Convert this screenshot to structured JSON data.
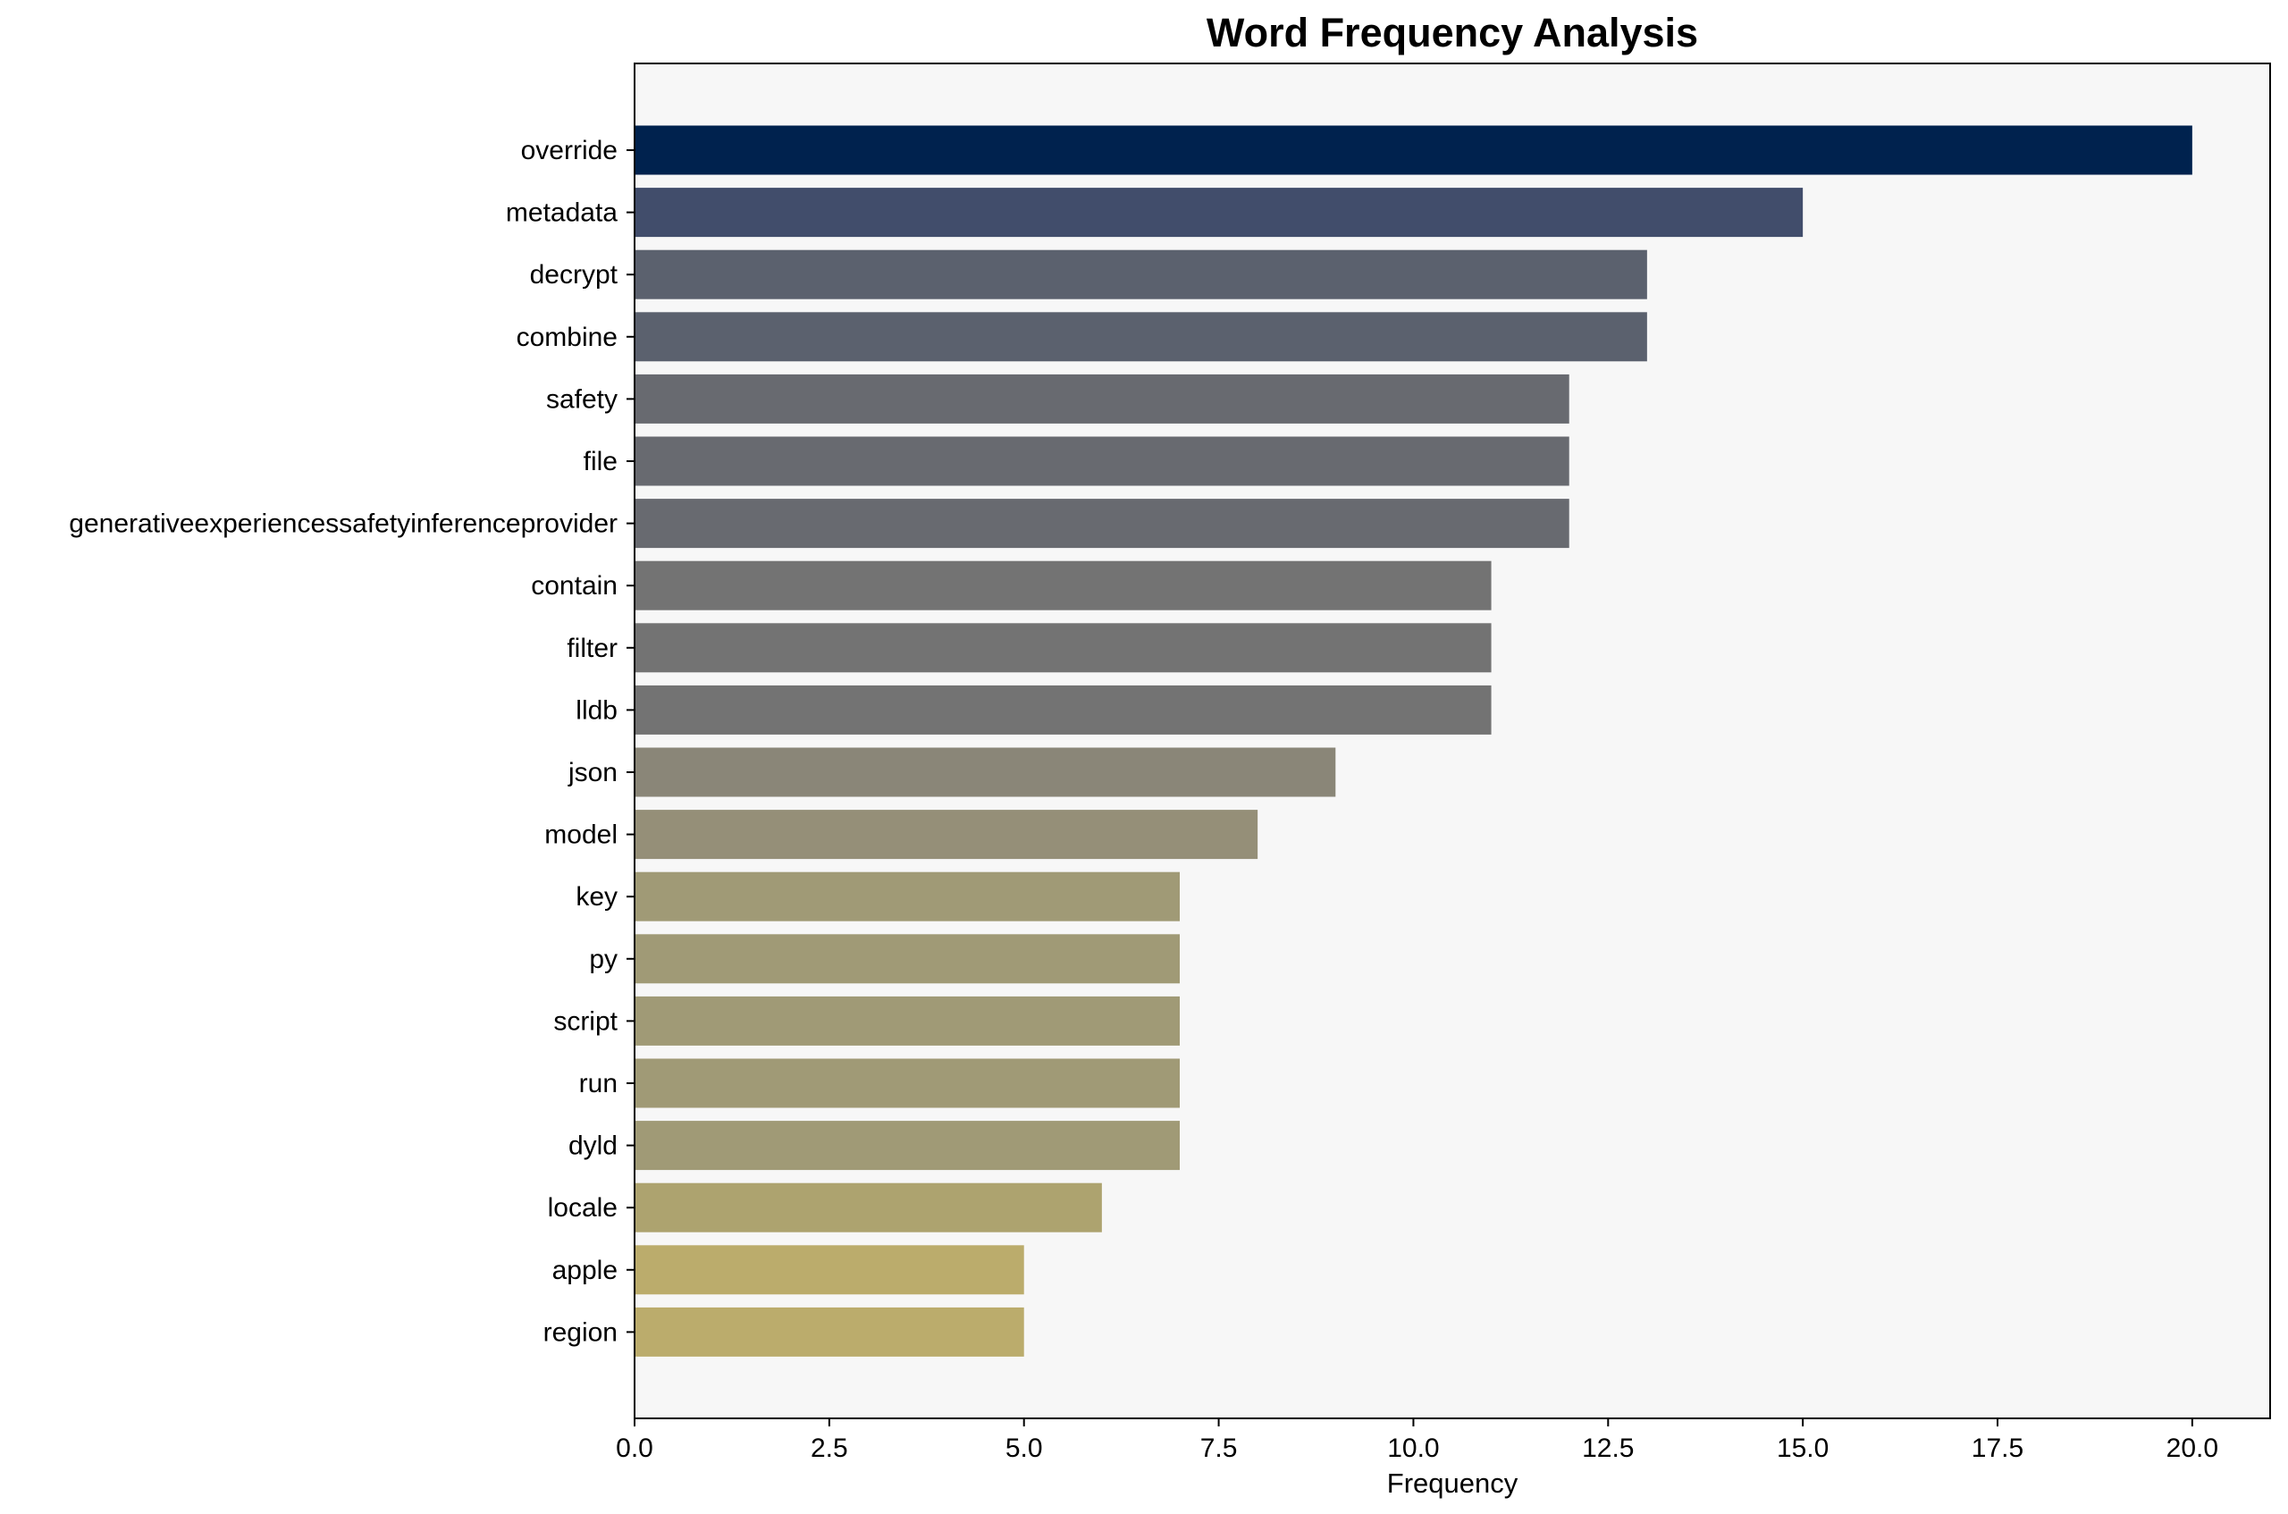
{
  "chart_data": {
    "type": "bar",
    "orientation": "horizontal",
    "title": "Word Frequency Analysis",
    "xlabel": "Frequency",
    "ylabel": "",
    "xlim": [
      0,
      21
    ],
    "xticks": [
      0.0,
      2.5,
      5.0,
      7.5,
      10.0,
      12.5,
      15.0,
      17.5,
      20.0
    ],
    "xtick_labels": [
      "0.0",
      "2.5",
      "5.0",
      "7.5",
      "10.0",
      "12.5",
      "15.0",
      "17.5",
      "20.0"
    ],
    "grid": false,
    "categories": [
      "override",
      "metadata",
      "decrypt",
      "combine",
      "safety",
      "file",
      "generativeexperiencessafetyinferenceprovider",
      "contain",
      "filter",
      "lldb",
      "json",
      "model",
      "key",
      "py",
      "script",
      "run",
      "dyld",
      "locale",
      "apple",
      "region"
    ],
    "values": [
      20,
      15,
      13,
      13,
      12,
      12,
      12,
      11,
      11,
      11,
      9,
      8,
      7,
      7,
      7,
      7,
      7,
      6,
      5,
      5
    ],
    "colors": [
      "#00224e",
      "#414d6b",
      "#5b616e",
      "#5b616e",
      "#686a70",
      "#686a70",
      "#686a70",
      "#737373",
      "#737373",
      "#737373",
      "#8a8678",
      "#958f78",
      "#a09a76",
      "#a09a76",
      "#a09a76",
      "#a09a76",
      "#a09a76",
      "#ada36f",
      "#bbac6c",
      "#bbac6c"
    ],
    "plot_background": "#f7f7f7"
  }
}
